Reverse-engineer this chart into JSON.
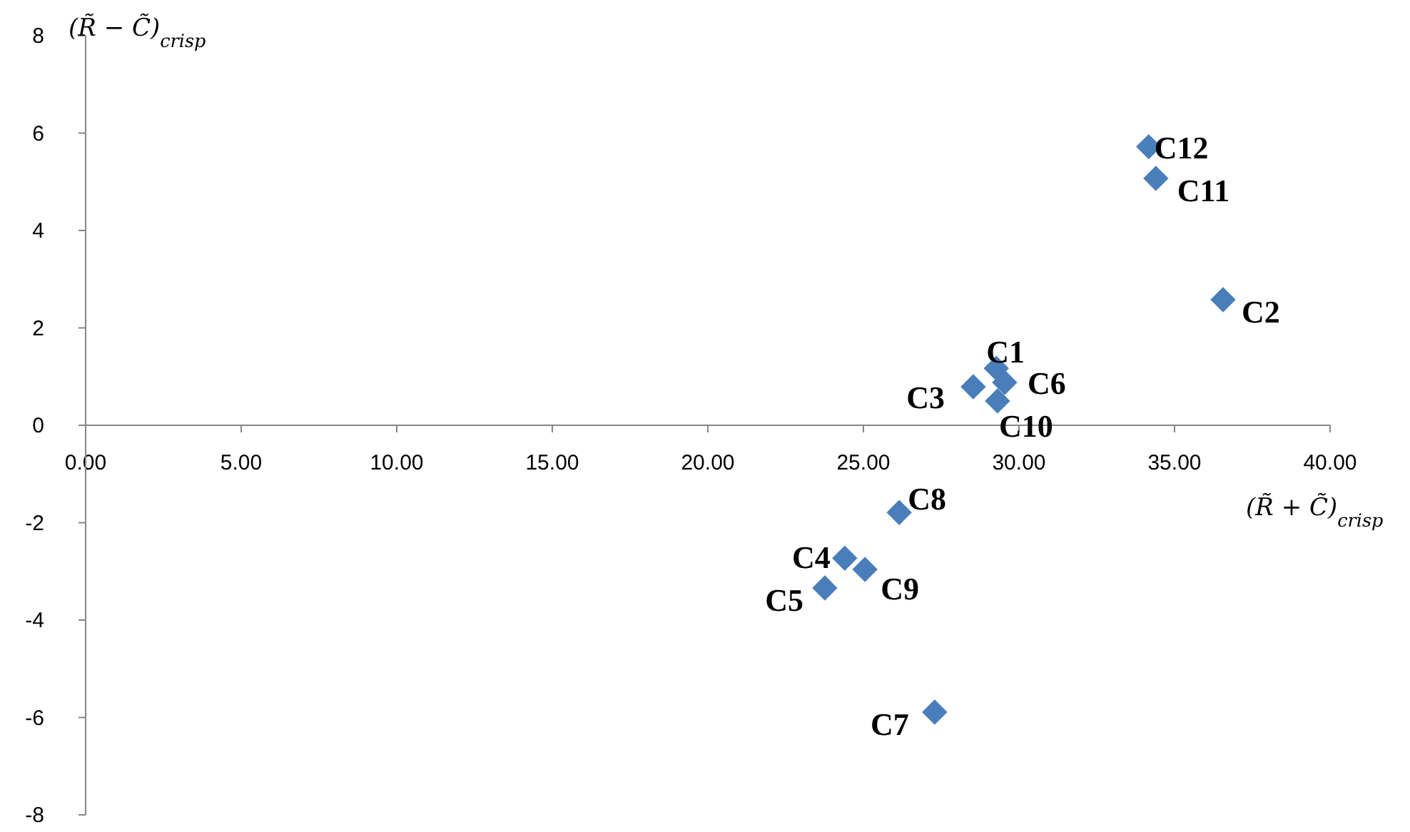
{
  "chart_data": {
    "type": "scatter",
    "xlabel": "(R̃ + C̃)$_{crisp}$",
    "ylabel": "(R̃ − C̃)$_{crisp}$",
    "series": [
      {
        "color": "#4a7ebb",
        "x": [
          29.27,
          36.56,
          28.53,
          24.4,
          23.76,
          29.54,
          27.29,
          26.15,
          25.05,
          29.31,
          34.4,
          34.17
        ],
        "values": [
          1.17,
          2.58,
          0.79,
          -2.73,
          -3.34,
          0.88,
          -5.89,
          -1.79,
          -2.96,
          0.5,
          5.07,
          5.72
        ]
      }
    ],
    "marker": "diamond",
    "xlim": [
      0,
      40
    ],
    "ylim": [
      -8,
      8
    ],
    "xticks": [
      {
        "value": 0,
        "label": "0.00"
      },
      {
        "value": 5,
        "label": "5.00"
      },
      {
        "value": 10,
        "label": "10.00"
      },
      {
        "value": 15,
        "label": "15.00"
      },
      {
        "value": 20,
        "label": "20.00"
      },
      {
        "value": 25,
        "label": "25.00"
      },
      {
        "value": 30,
        "label": "30.00"
      },
      {
        "value": 35,
        "label": "35.00"
      },
      {
        "value": 40,
        "label": "40.00"
      }
    ],
    "yticks": [
      -8,
      -6,
      -4,
      -2,
      0,
      2,
      4,
      6,
      8
    ],
    "grid": false,
    "annotations": [
      {
        "text": "C1",
        "x": 29.27,
        "y": 1.17
      },
      {
        "text": "C2",
        "x": 36.56,
        "y": 2.58
      },
      {
        "text": "C3",
        "x": 28.53,
        "y": 0.79
      },
      {
        "text": "C4",
        "x": 24.4,
        "y": -2.73
      },
      {
        "text": "C5",
        "x": 23.76,
        "y": -3.34
      },
      {
        "text": "C6",
        "x": 29.54,
        "y": 0.88
      },
      {
        "text": "C7",
        "x": 27.29,
        "y": -5.89
      },
      {
        "text": "C8",
        "x": 26.15,
        "y": -1.79
      },
      {
        "text": "C9",
        "x": 25.05,
        "y": -2.96
      },
      {
        "text": "C10",
        "x": 29.31,
        "y": 0.5
      },
      {
        "text": "C11",
        "x": 34.4,
        "y": 5.07
      },
      {
        "text": "C12",
        "x": 34.17,
        "y": 5.72
      }
    ]
  }
}
